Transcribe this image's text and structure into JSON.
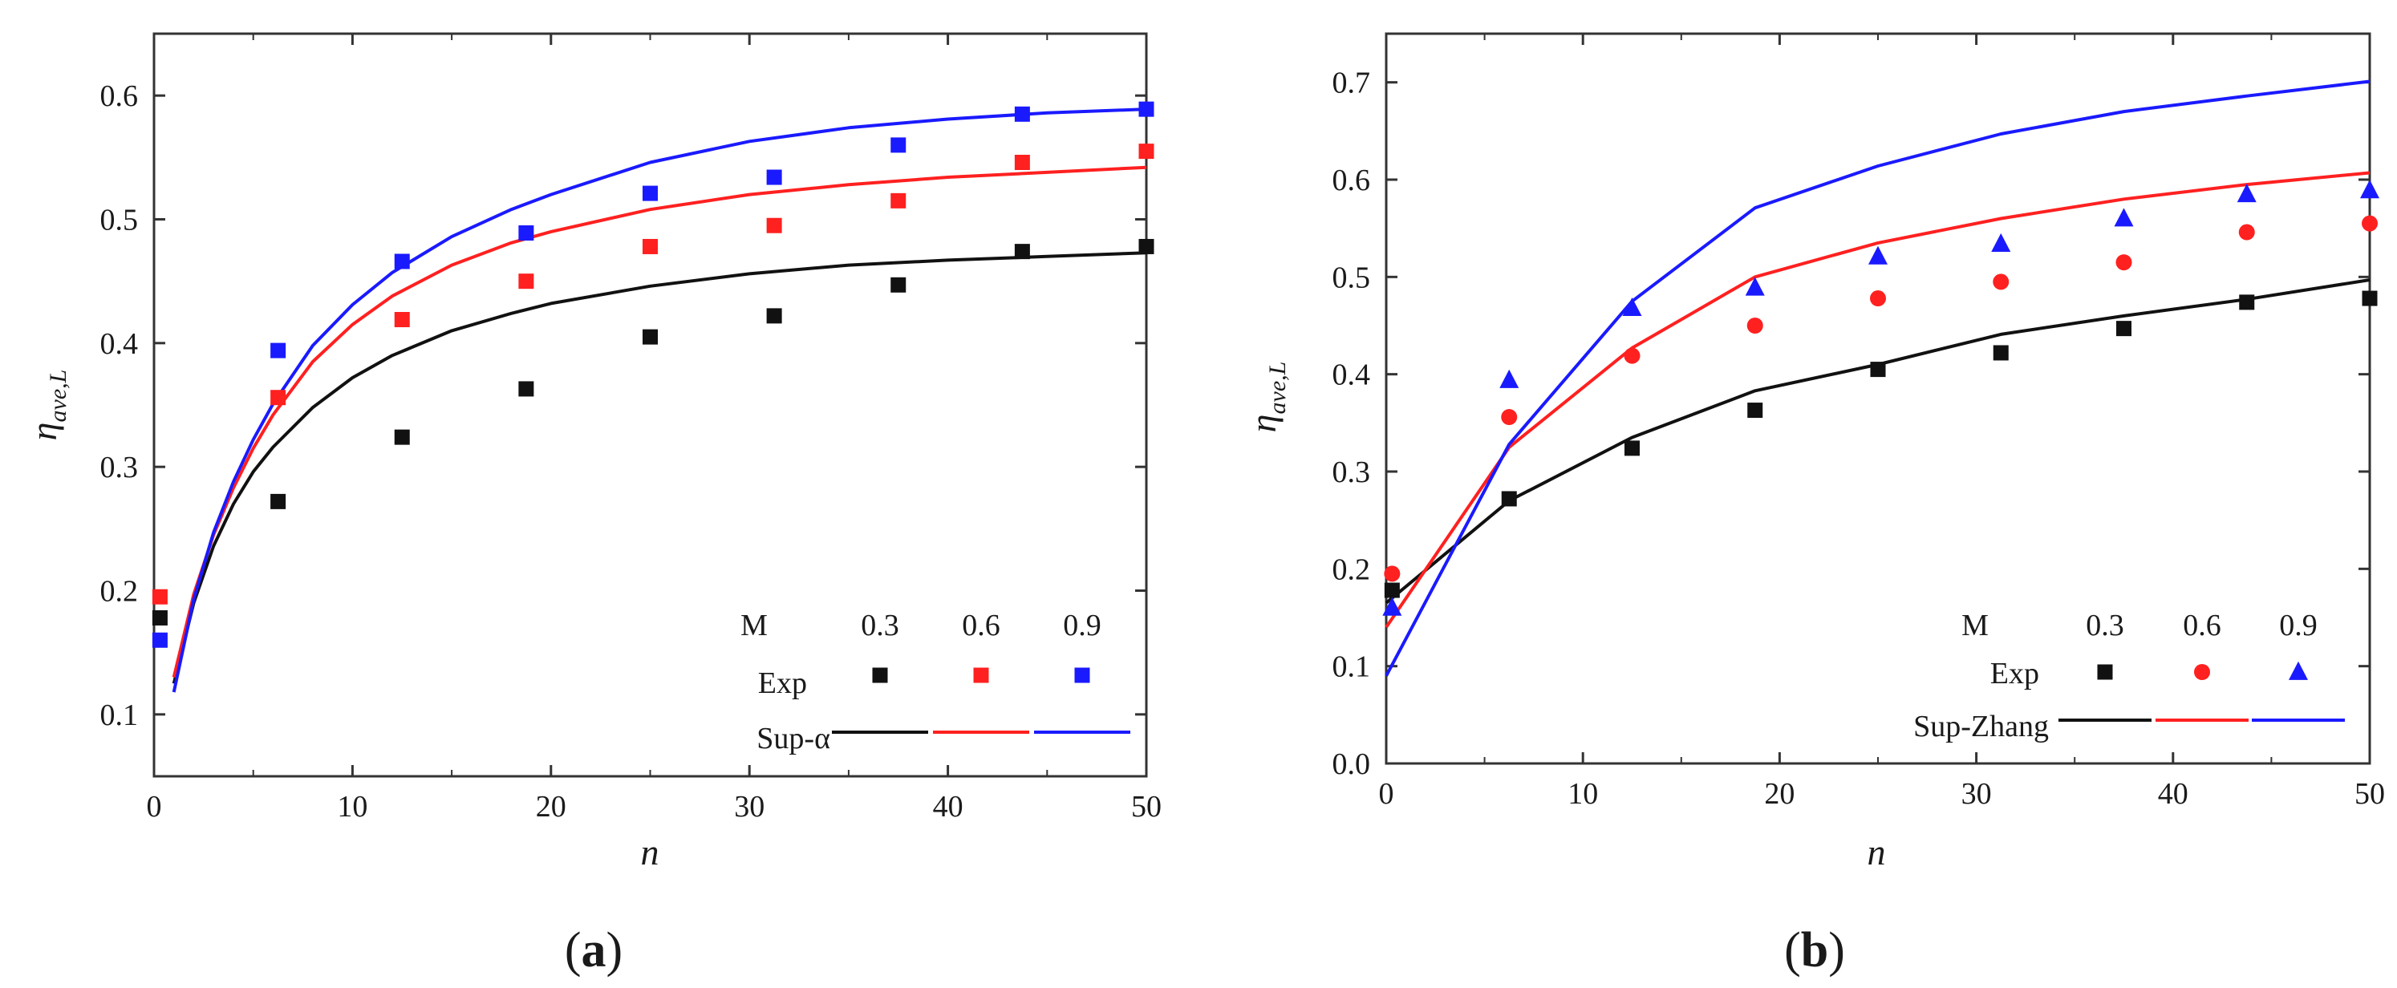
{
  "colors": {
    "black": "#111111",
    "red": "#ff2020",
    "blue": "#1a1aff"
  },
  "chart_data": [
    {
      "type": "scatter",
      "panel_label": "a",
      "xlabel": "n",
      "ylabel": "η",
      "ylabel_sub": "ave,L",
      "xlim": [
        0,
        50
      ],
      "ylim": [
        0.05,
        0.65
      ],
      "xticks": [
        0,
        10,
        20,
        30,
        40,
        50
      ],
      "xtick_labels": [
        "0",
        "10",
        "20",
        "30",
        "40",
        "50"
      ],
      "yticks": [
        0.1,
        0.2,
        0.3,
        0.4,
        0.5,
        0.6
      ],
      "ytick_labels": [
        "0.1",
        "0.2",
        "0.3",
        "0.4",
        "0.5",
        "0.6"
      ],
      "legend": {
        "header_label": "M",
        "m_values": [
          "0.3",
          "0.6",
          "0.9"
        ],
        "scatter_label": "Exp",
        "line_label": "Sup-α",
        "marker_shapes": [
          "square",
          "square",
          "square"
        ]
      },
      "scatter_series": [
        {
          "name": "Exp M=0.3",
          "color": "#111111",
          "marker": "square",
          "x": [
            0.3,
            6.25,
            12.5,
            18.75,
            25,
            31.25,
            37.5,
            43.75,
            50
          ],
          "y": [
            0.178,
            0.272,
            0.324,
            0.363,
            0.405,
            0.422,
            0.447,
            0.474,
            0.478
          ]
        },
        {
          "name": "Exp M=0.6",
          "color": "#ff2020",
          "marker": "square",
          "x": [
            0.3,
            6.25,
            12.5,
            18.75,
            25,
            31.25,
            37.5,
            43.75,
            50
          ],
          "y": [
            0.195,
            0.356,
            0.419,
            0.45,
            0.478,
            0.495,
            0.515,
            0.546,
            0.555
          ]
        },
        {
          "name": "Exp M=0.9",
          "color": "#1a1aff",
          "marker": "square",
          "x": [
            0.3,
            6.25,
            12.5,
            18.75,
            25,
            31.25,
            37.5,
            43.75,
            50
          ],
          "y": [
            0.16,
            0.394,
            0.466,
            0.489,
            0.521,
            0.534,
            0.56,
            0.585,
            0.589
          ]
        }
      ],
      "line_series": [
        {
          "name": "Sup-α M=0.3",
          "color": "#111111",
          "x": [
            1,
            2,
            3,
            4,
            5,
            6,
            8,
            10,
            12,
            15,
            18,
            20,
            25,
            30,
            35,
            40,
            45,
            50
          ],
          "y": [
            0.125,
            0.19,
            0.236,
            0.27,
            0.296,
            0.316,
            0.348,
            0.372,
            0.39,
            0.41,
            0.424,
            0.432,
            0.446,
            0.456,
            0.463,
            0.467,
            0.47,
            0.473
          ]
        },
        {
          "name": "Sup-α M=0.6",
          "color": "#ff2020",
          "x": [
            1,
            2,
            3,
            4,
            5,
            6,
            8,
            10,
            12,
            15,
            18,
            20,
            25,
            30,
            35,
            40,
            45,
            50
          ],
          "y": [
            0.13,
            0.197,
            0.245,
            0.283,
            0.315,
            0.342,
            0.385,
            0.415,
            0.438,
            0.463,
            0.481,
            0.49,
            0.508,
            0.52,
            0.528,
            0.534,
            0.538,
            0.542
          ]
        },
        {
          "name": "Sup-α M=0.9",
          "color": "#1a1aff",
          "x": [
            1,
            2,
            3,
            4,
            5,
            6,
            8,
            10,
            12,
            15,
            18,
            20,
            25,
            30,
            35,
            40,
            45,
            50
          ],
          "y": [
            0.118,
            0.193,
            0.247,
            0.288,
            0.322,
            0.351,
            0.398,
            0.431,
            0.457,
            0.486,
            0.508,
            0.52,
            0.546,
            0.563,
            0.574,
            0.581,
            0.586,
            0.589
          ]
        }
      ]
    },
    {
      "type": "scatter",
      "panel_label": "b",
      "xlabel": "n",
      "ylabel": "η",
      "ylabel_sub": "ave,L",
      "xlim": [
        0,
        50
      ],
      "ylim": [
        0.0,
        0.75
      ],
      "xticks": [
        0,
        10,
        20,
        30,
        40,
        50
      ],
      "xtick_labels": [
        "0",
        "10",
        "20",
        "30",
        "40",
        "50"
      ],
      "yticks": [
        0.0,
        0.1,
        0.2,
        0.3,
        0.4,
        0.5,
        0.6,
        0.7
      ],
      "ytick_labels": [
        "0.0",
        "0.1",
        "0.2",
        "0.3",
        "0.4",
        "0.5",
        "0.6",
        "0.7"
      ],
      "legend": {
        "header_label": "M",
        "m_values": [
          "0.3",
          "0.6",
          "0.9"
        ],
        "scatter_label": "Exp",
        "line_label": "Sup-Zhang",
        "marker_shapes": [
          "square",
          "circle",
          "triangle"
        ]
      },
      "scatter_series": [
        {
          "name": "Exp M=0.3",
          "color": "#111111",
          "marker": "square",
          "x": [
            0.3,
            6.25,
            12.5,
            18.75,
            25,
            31.25,
            37.5,
            43.75,
            50
          ],
          "y": [
            0.178,
            0.272,
            0.324,
            0.363,
            0.405,
            0.422,
            0.447,
            0.474,
            0.478
          ]
        },
        {
          "name": "Exp M=0.6",
          "color": "#ff2020",
          "marker": "circle",
          "x": [
            0.3,
            6.25,
            12.5,
            18.75,
            25,
            31.25,
            37.5,
            43.75,
            50
          ],
          "y": [
            0.195,
            0.356,
            0.419,
            0.45,
            0.478,
            0.495,
            0.515,
            0.546,
            0.555
          ]
        },
        {
          "name": "Exp M=0.9",
          "color": "#1a1aff",
          "marker": "triangle",
          "x": [
            0.3,
            6.25,
            12.5,
            18.75,
            25,
            31.25,
            37.5,
            43.75,
            50
          ],
          "y": [
            0.16,
            0.394,
            0.468,
            0.489,
            0.521,
            0.534,
            0.56,
            0.585,
            0.589
          ]
        }
      ],
      "line_series": [
        {
          "name": "Sup-Zhang M=0.3",
          "color": "#111111",
          "x": [
            0,
            6.25,
            12.5,
            18.75,
            25,
            31.25,
            37.5,
            43.75,
            50
          ],
          "y": [
            0.165,
            0.27,
            0.335,
            0.383,
            0.41,
            0.441,
            0.46,
            0.477,
            0.497
          ]
        },
        {
          "name": "Sup-Zhang M=0.6",
          "color": "#ff2020",
          "x": [
            0,
            6.25,
            12.5,
            18.75,
            25,
            31.25,
            37.5,
            43.75,
            50
          ],
          "y": [
            0.14,
            0.325,
            0.427,
            0.5,
            0.535,
            0.56,
            0.58,
            0.595,
            0.607
          ]
        },
        {
          "name": "Sup-Zhang M=0.9",
          "color": "#1a1aff",
          "x": [
            0,
            6.25,
            12.5,
            18.75,
            25,
            31.25,
            37.5,
            43.75,
            50
          ],
          "y": [
            0.09,
            0.328,
            0.475,
            0.571,
            0.614,
            0.647,
            0.67,
            0.686,
            0.701
          ]
        }
      ]
    }
  ]
}
